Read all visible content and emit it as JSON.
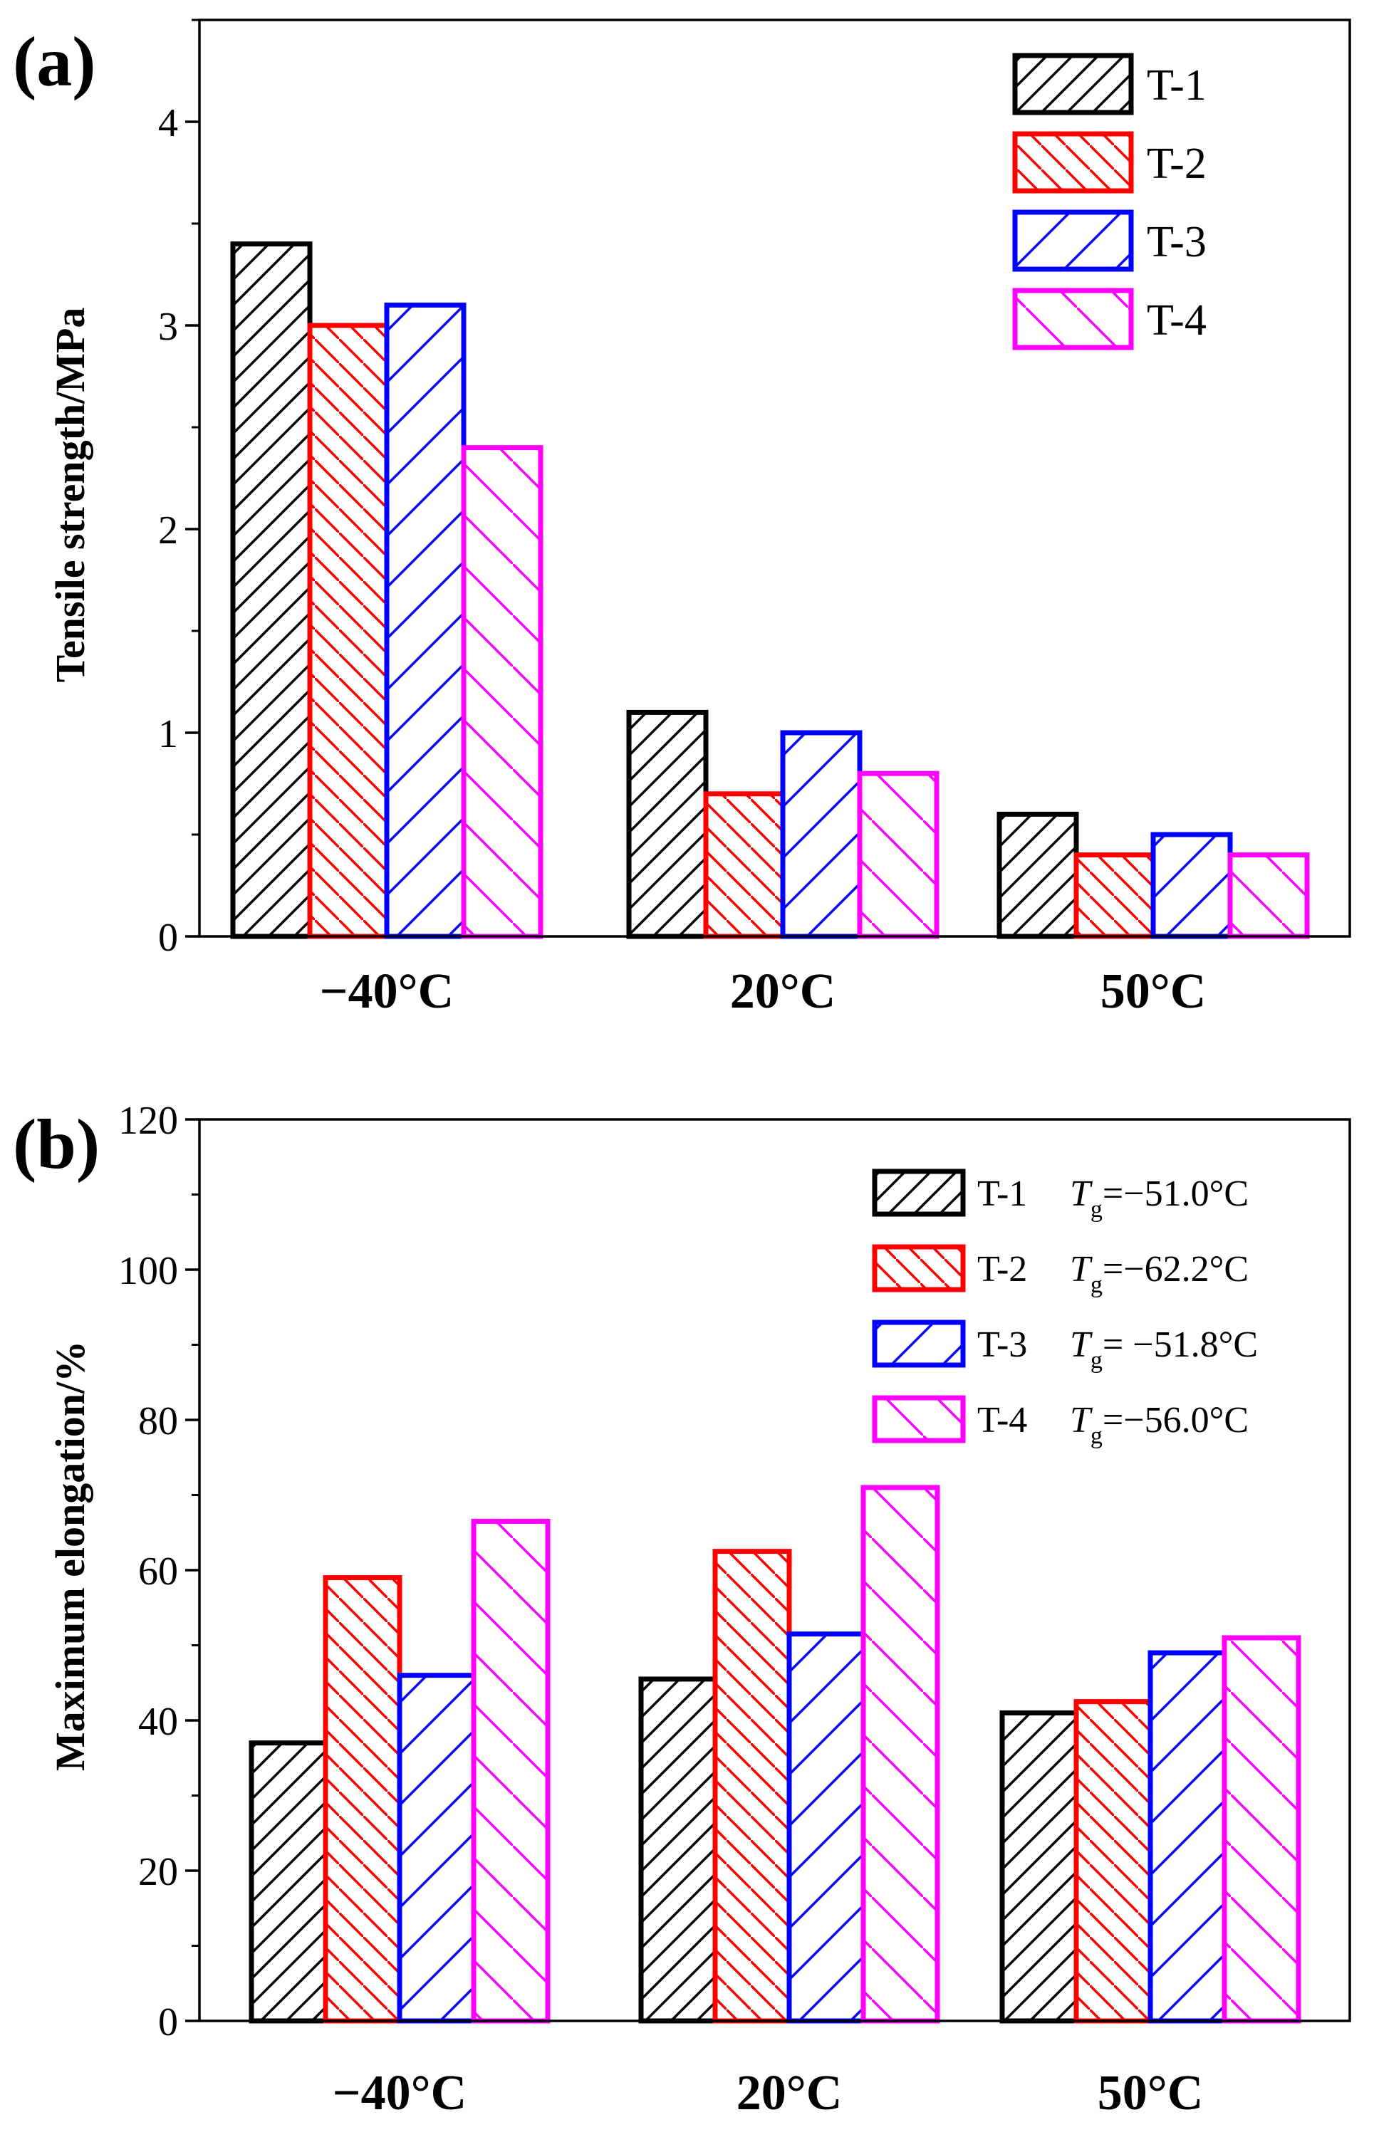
{
  "colors": {
    "T-1": "#000000",
    "T-2": "#ff0000",
    "T-3": "#0000ff",
    "T-4": "#ff00ff"
  },
  "chart_data": [
    {
      "panel_label": "(a)",
      "type": "bar",
      "categories": [
        "−40°C",
        "20°C",
        "50°C"
      ],
      "ylabel": "Tensile strength/MPa",
      "ylim": [
        0,
        4.5
      ],
      "yticks": [
        0,
        1,
        2,
        3,
        4
      ],
      "series": [
        {
          "name": "T-1",
          "values": [
            3.4,
            1.1,
            0.6
          ]
        },
        {
          "name": "T-2",
          "values": [
            3.0,
            0.7,
            0.4
          ]
        },
        {
          "name": "T-3",
          "values": [
            3.1,
            1.0,
            0.5
          ]
        },
        {
          "name": "T-4",
          "values": [
            2.4,
            0.8,
            0.4
          ]
        }
      ],
      "legend": {
        "position": "top-right",
        "entries": [
          {
            "name": "T-1",
            "tg_symbol": "",
            "tg_sub": "",
            "tg_value": ""
          },
          {
            "name": "T-2",
            "tg_symbol": "",
            "tg_sub": "",
            "tg_value": ""
          },
          {
            "name": "T-3",
            "tg_symbol": "",
            "tg_sub": "",
            "tg_value": ""
          },
          {
            "name": "T-4",
            "tg_symbol": "",
            "tg_sub": "",
            "tg_value": ""
          }
        ]
      }
    },
    {
      "panel_label": "(b)",
      "type": "bar",
      "categories": [
        "−40°C",
        "20°C",
        "50°C"
      ],
      "ylabel": "Maximum elongation/%",
      "ylim": [
        0,
        120
      ],
      "yticks": [
        0,
        20,
        40,
        60,
        80,
        100,
        120
      ],
      "series": [
        {
          "name": "T-1",
          "values": [
            37,
            45.5,
            41
          ]
        },
        {
          "name": "T-2",
          "values": [
            59,
            62.5,
            42.5
          ]
        },
        {
          "name": "T-3",
          "values": [
            46,
            51.5,
            49
          ]
        },
        {
          "name": "T-4",
          "values": [
            66.5,
            71,
            51
          ]
        }
      ],
      "legend": {
        "position": "top-right",
        "entries": [
          {
            "name": "T-1",
            "tg_symbol": "T",
            "tg_sub": "g",
            "tg_value": "=−51.0°C"
          },
          {
            "name": "T-2",
            "tg_symbol": "T",
            "tg_sub": "g",
            "tg_value": "=−62.2°C"
          },
          {
            "name": "T-3",
            "tg_symbol": "T",
            "tg_sub": "g",
            "tg_value": "= −51.8°C"
          },
          {
            "name": "T-4",
            "tg_symbol": "T",
            "tg_sub": "g",
            "tg_value": "=−56.0°C"
          }
        ]
      }
    }
  ]
}
